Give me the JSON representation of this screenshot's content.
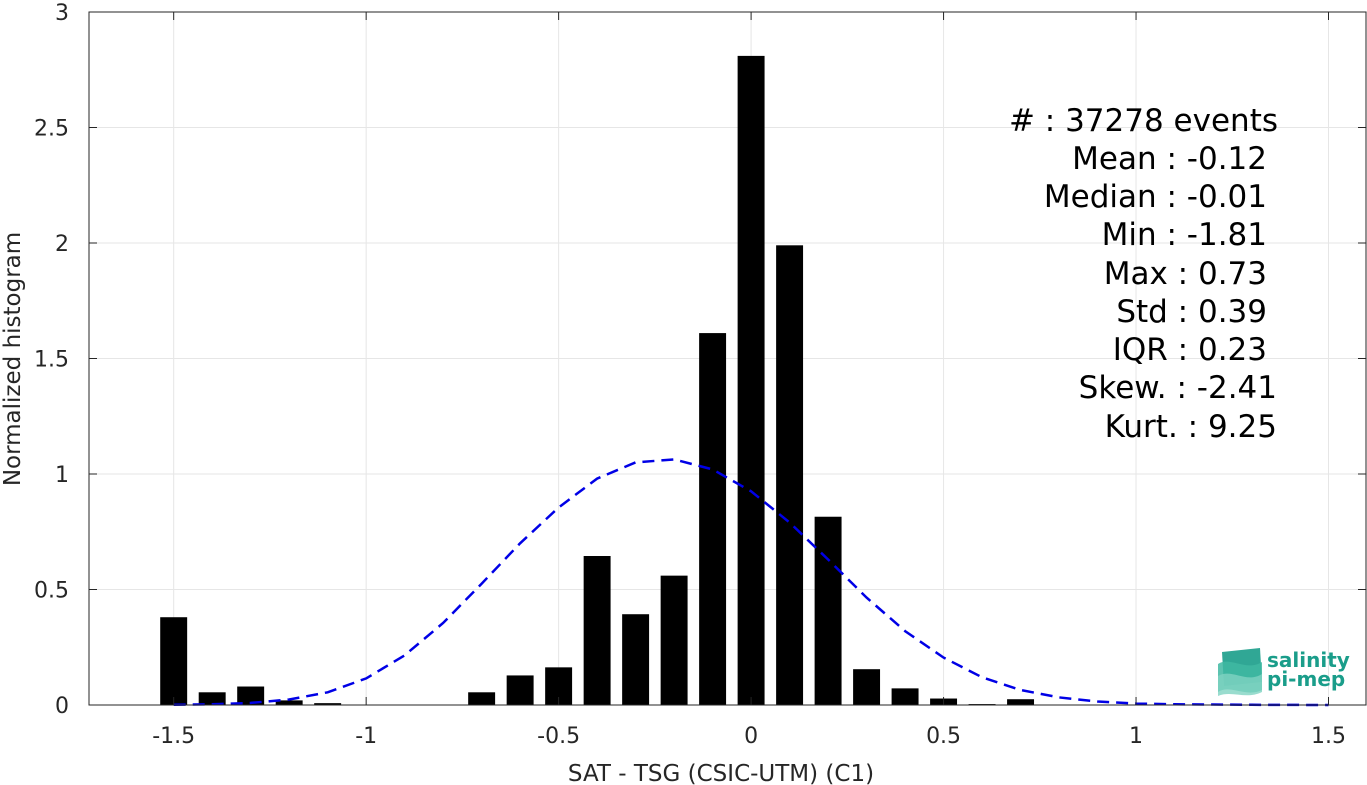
{
  "chart_data": {
    "type": "bar",
    "xlabel": "SAT - TSG (CSIC-UTM) (C1)",
    "ylabel": "Normalized histogram",
    "xlim": [
      -1.72,
      1.6
    ],
    "ylim": [
      0,
      3
    ],
    "xticks": [
      -1.5,
      -1,
      -0.5,
      0,
      0.5,
      1,
      1.5
    ],
    "xtick_labels": [
      "-1.5",
      "-1",
      "-0.5",
      "0",
      "0.5",
      "1",
      "1.5"
    ],
    "yticks": [
      0,
      0.5,
      1,
      1.5,
      2,
      2.5,
      3
    ],
    "ytick_labels": [
      "0",
      "0.5",
      "1",
      "1.5",
      "2",
      "2.5",
      "3"
    ],
    "grid": true,
    "bar_width": 0.07,
    "bars": {
      "x": [
        -1.5,
        -1.4,
        -1.3,
        -1.2,
        -1.1,
        -1.0,
        -0.9,
        -0.8,
        -0.7,
        -0.6,
        -0.5,
        -0.4,
        -0.3,
        -0.2,
        -0.1,
        0.0,
        0.1,
        0.2,
        0.3,
        0.4,
        0.5,
        0.6,
        0.7
      ],
      "values": [
        0.38,
        0.055,
        0.08,
        0.02,
        0.008,
        0.0,
        0.0,
        0.0,
        0.055,
        0.128,
        0.163,
        0.645,
        0.393,
        0.56,
        1.61,
        2.81,
        1.99,
        0.815,
        0.155,
        0.072,
        0.028,
        0.004,
        0.025
      ],
      "color": "#000000"
    },
    "series": [
      {
        "type": "line",
        "style": "dashed",
        "color": "#0000e6",
        "x": [
          -1.5,
          -1.4,
          -1.3,
          -1.2,
          -1.1,
          -1.0,
          -0.9,
          -0.8,
          -0.7,
          -0.6,
          -0.5,
          -0.4,
          -0.3,
          -0.2,
          -0.1,
          0.0,
          0.1,
          0.2,
          0.3,
          0.4,
          0.5,
          0.6,
          0.7,
          0.8,
          0.9,
          1.0,
          1.1,
          1.2,
          1.3,
          1.4,
          1.5
        ],
        "values": [
          0.001,
          0.003,
          0.009,
          0.024,
          0.055,
          0.115,
          0.215,
          0.355,
          0.525,
          0.7,
          0.855,
          0.98,
          1.05,
          1.063,
          1.02,
          0.925,
          0.79,
          0.63,
          0.465,
          0.32,
          0.205,
          0.12,
          0.065,
          0.033,
          0.015,
          0.006,
          0.003,
          0.002,
          0.001,
          0.0005,
          0.0002
        ]
      }
    ],
    "stats": {
      "count": "#  : 37278 events",
      "mean": "Mean : -0.12",
      "median": "Median : -0.01",
      "min": "Min : -1.81",
      "max": "Max : 0.73",
      "std": "Std : 0.39",
      "iqr": "IQR : 0.23",
      "skew": "Skew. : -2.41",
      "kurt": "Kurt. : 9.25"
    }
  },
  "logo": {
    "line1": "salinity",
    "line2": "pi-mep",
    "color": "#1a9d8a"
  }
}
